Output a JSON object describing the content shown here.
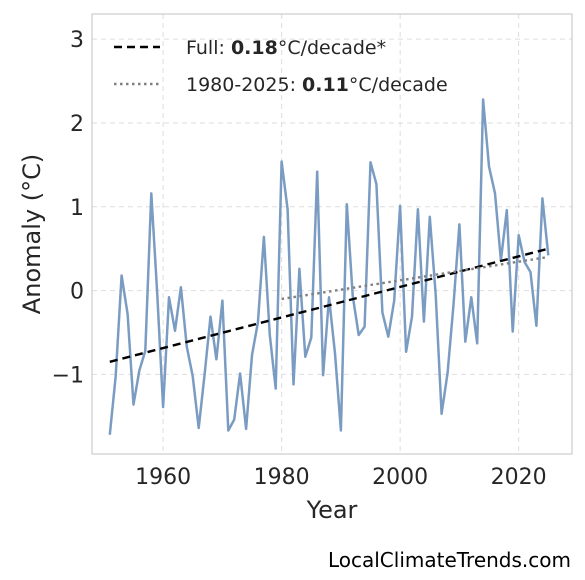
{
  "chart_data": {
    "type": "line",
    "xlabel": "Year",
    "ylabel": "Anomaly (°C)",
    "xlim": [
      1948,
      2029
    ],
    "ylim": [
      -1.95,
      3.3
    ],
    "xticks": [
      1960,
      1980,
      2000,
      2020
    ],
    "yticks": [
      -1,
      0,
      1,
      2,
      3
    ],
    "ytick_labels": [
      "−1",
      "0",
      "1",
      "2",
      "3"
    ],
    "grid": true,
    "legend_position": "top-left",
    "series": [
      {
        "color": "#7b9cc2",
        "style": "solid",
        "x": [
          1951,
          1952,
          1953,
          1954,
          1955,
          1956,
          1957,
          1958,
          1959,
          1960,
          1961,
          1962,
          1963,
          1964,
          1965,
          1966,
          1967,
          1968,
          1969,
          1970,
          1971,
          1972,
          1973,
          1974,
          1975,
          1976,
          1977,
          1978,
          1979,
          1980,
          1981,
          1982,
          1983,
          1984,
          1985,
          1986,
          1987,
          1988,
          1989,
          1990,
          1991,
          1992,
          1993,
          1994,
          1995,
          1996,
          1997,
          1998,
          1999,
          2000,
          2001,
          2002,
          2003,
          2004,
          2005,
          2006,
          2007,
          2008,
          2009,
          2010,
          2011,
          2012,
          2013,
          2014,
          2015,
          2016,
          2017,
          2018,
          2019,
          2020,
          2021,
          2022,
          2023,
          2024,
          2025
        ],
        "y": [
          -1.72,
          -1.02,
          0.18,
          -0.28,
          -1.36,
          -0.95,
          -0.72,
          1.16,
          -0.03,
          -1.39,
          -0.08,
          -0.48,
          0.04,
          -0.67,
          -1.02,
          -1.64,
          -1.0,
          -0.31,
          -0.82,
          -0.12,
          -1.67,
          -1.54,
          -0.99,
          -1.65,
          -0.77,
          -0.38,
          0.64,
          -0.53,
          -1.17,
          1.54,
          0.97,
          -1.12,
          0.26,
          -0.79,
          -0.56,
          1.42,
          -1.01,
          -0.08,
          -0.75,
          -1.67,
          1.03,
          -0.06,
          -0.53,
          -0.43,
          1.53,
          1.27,
          -0.26,
          -0.55,
          -0.12,
          1.01,
          -0.73,
          -0.31,
          0.97,
          -0.37,
          0.88,
          -0.05,
          -1.47,
          -0.98,
          -0.17,
          0.79,
          -0.61,
          -0.08,
          -0.63,
          2.28,
          1.48,
          1.16,
          0.36,
          0.96,
          -0.49,
          0.66,
          0.34,
          0.22,
          -0.42,
          1.1,
          0.42
        ]
      },
      {
        "name": "Full: 0.18°C/decade*",
        "name_prefix": "Full: ",
        "name_value": "0.18",
        "name_suffix": "°C/decade*",
        "color": "#000000",
        "style": "dashed",
        "x": [
          1951,
          2025
        ],
        "y": [
          -0.85,
          0.5
        ]
      },
      {
        "name": "1980-2025: 0.11°C/decade",
        "name_prefix": "1980-2025: ",
        "name_value": "0.11",
        "name_suffix": "°C/decade",
        "color": "#808080",
        "style": "dotted",
        "x": [
          1980,
          2025
        ],
        "y": [
          -0.1,
          0.4
        ]
      }
    ]
  },
  "credit": "LocalClimateTrends.com"
}
